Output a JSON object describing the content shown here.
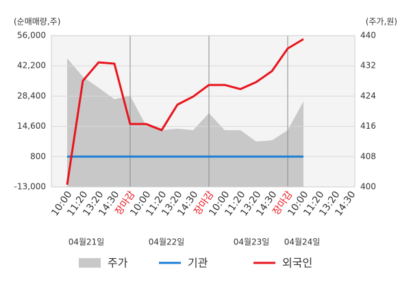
{
  "chart_data": {
    "type": "line",
    "y_axis_label": "(순매매량,주)",
    "y2_axis_label": "(주가,원)",
    "categories": [
      "10:00",
      "11:20",
      "13:20",
      "14:30",
      "장마감",
      "10:00",
      "11:20",
      "13:20",
      "14:30",
      "장마감",
      "10:00",
      "11:20",
      "13:20",
      "14:30",
      "장마감",
      "10:00",
      "11:20",
      "13:20",
      "14:30"
    ],
    "date_labels": [
      "04월21일",
      "04월22일",
      "04월23일",
      "04월24일"
    ],
    "ylim": [
      -13000,
      56000
    ],
    "yticks": [
      {
        "value": -13000,
        "label": "-13,000"
      },
      800,
      {
        "value": 14600,
        "label": "14,600"
      },
      {
        "value": 28400,
        "label": "28,400"
      },
      {
        "value": 42200,
        "label": "42,200"
      },
      {
        "value": 56000,
        "label": "56,000"
      }
    ],
    "y2lim": [
      400,
      440
    ],
    "y2ticks": [
      400,
      408,
      416,
      424,
      432,
      440
    ],
    "grid": true,
    "series": [
      {
        "name": "주가",
        "color": "#c8c8c8",
        "axis": "y2",
        "kind": "area",
        "values": [
          434.0,
          429.1,
          426.2,
          423.2,
          424.1,
          416.3,
          415.0,
          415.4,
          415.0,
          419.5,
          415.0,
          415.0,
          412.0,
          412.3,
          415.0,
          422.6,
          null,
          null,
          null
        ]
      },
      {
        "name": "기관",
        "color": "#1a7ed6",
        "values": [
          800,
          800,
          800,
          800,
          800,
          800,
          800,
          800,
          800,
          800,
          800,
          800,
          800,
          800,
          800,
          800,
          null,
          null,
          null
        ]
      },
      {
        "name": "외국인",
        "color": "#e8141c",
        "values": [
          -12000,
          35400,
          43800,
          43200,
          15700,
          15700,
          12900,
          24500,
          28200,
          33500,
          33500,
          31600,
          34800,
          39800,
          50100,
          54400,
          null,
          null,
          null
        ]
      }
    ]
  }
}
